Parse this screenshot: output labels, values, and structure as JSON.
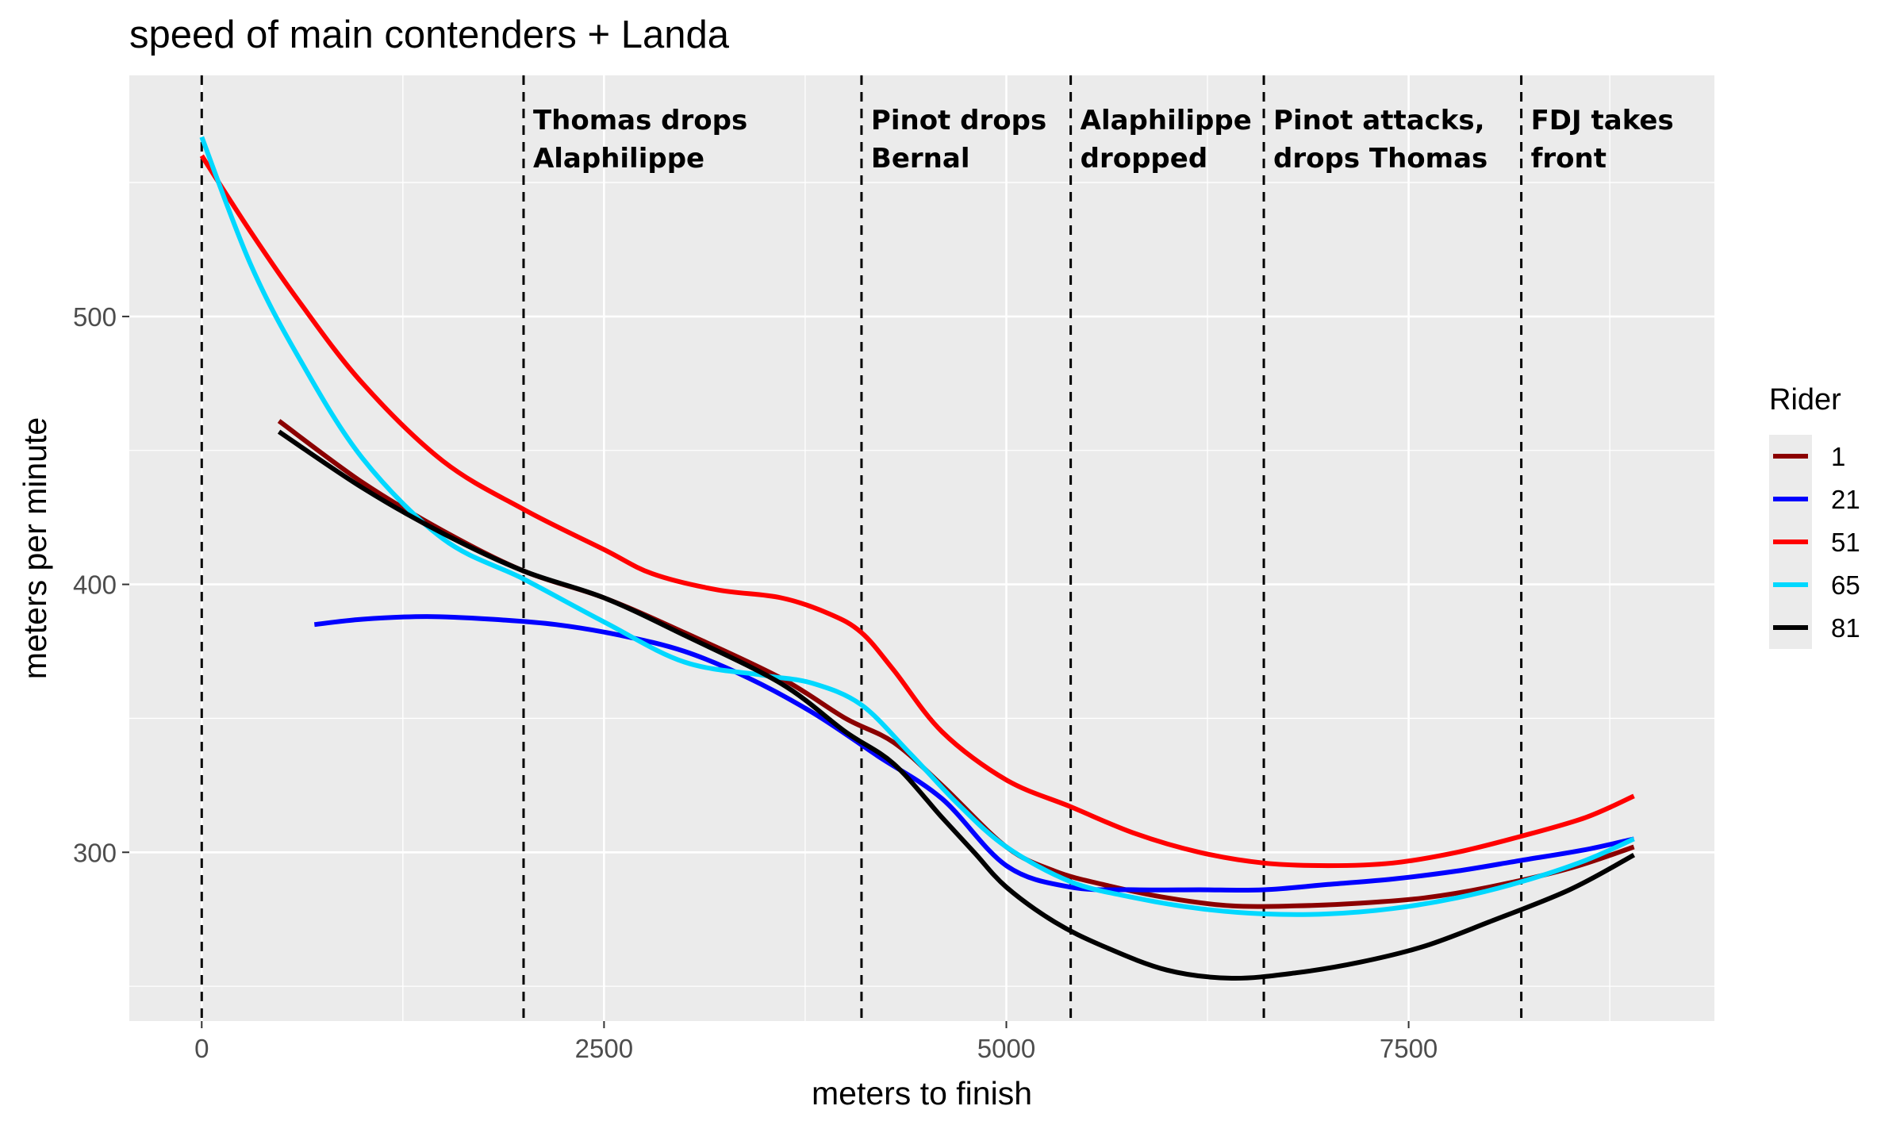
{
  "chart_data": {
    "type": "line",
    "title": "speed of main contenders + Landa",
    "xlabel": "meters to finish",
    "ylabel": "meters per minute",
    "xlim": [
      -450,
      9400
    ],
    "ylim": [
      237,
      590
    ],
    "x_ticks": [
      0,
      2500,
      5000,
      7500
    ],
    "x_tick_labels": [
      "0",
      "2500",
      "5000",
      "7500"
    ],
    "y_ticks": [
      300,
      400,
      500
    ],
    "y_tick_labels": [
      "300",
      "400",
      "500"
    ],
    "y_minor_ticks": [
      250,
      350,
      450,
      550
    ],
    "x_minor_ticks": [
      1250,
      3750,
      6250,
      8750
    ],
    "grid": true,
    "legend": {
      "title": "Rider",
      "position": "right"
    },
    "series": [
      {
        "name": "1",
        "color": "#8b0000",
        "x": [
          480,
          1000,
          1500,
          2000,
          2500,
          3000,
          3600,
          4000,
          4300,
          4600,
          5000,
          5300,
          5600,
          6000,
          6400,
          6800,
          7200,
          7600,
          8000,
          8500,
          8900
        ],
        "y": [
          461,
          438,
          420,
          405,
          395,
          382,
          365,
          350,
          341,
          325,
          302,
          293,
          288,
          283,
          280,
          280,
          281,
          283,
          287,
          294,
          302
        ]
      },
      {
        "name": "21",
        "color": "#0000ff",
        "x": [
          700,
          1000,
          1400,
          1800,
          2200,
          2600,
          3000,
          3400,
          3800,
          4200,
          4600,
          5000,
          5400,
          5800,
          6200,
          6600,
          7000,
          7400,
          7800,
          8200,
          8600,
          8900
        ],
        "y": [
          385,
          387,
          388,
          387,
          385,
          381,
          375,
          365,
          352,
          336,
          320,
          295,
          287,
          286,
          286,
          286,
          288,
          290,
          293,
          297,
          301,
          305
        ]
      },
      {
        "name": "51",
        "color": "#ff0000",
        "x": [
          0,
          300,
          600,
          1000,
          1500,
          2000,
          2500,
          2800,
          3200,
          3600,
          3900,
          4100,
          4300,
          4600,
          5000,
          5400,
          5800,
          6200,
          6600,
          7000,
          7400,
          7800,
          8200,
          8600,
          8900
        ],
        "y": [
          560,
          532,
          506,
          475,
          446,
          428,
          413,
          404,
          398,
          395,
          389,
          382,
          368,
          345,
          327,
          317,
          307,
          300,
          296,
          295,
          296,
          300,
          306,
          313,
          321
        ]
      },
      {
        "name": "65",
        "color": "#00d8ff",
        "x": [
          0,
          300,
          600,
          1000,
          1500,
          2000,
          2500,
          3000,
          3500,
          3800,
          4100,
          4400,
          4700,
          5000,
          5400,
          5800,
          6200,
          6600,
          7000,
          7400,
          7800,
          8200,
          8600,
          8900
        ],
        "y": [
          567,
          520,
          485,
          447,
          417,
          402,
          386,
          371,
          366,
          363,
          355,
          337,
          318,
          302,
          289,
          283,
          279,
          277,
          277,
          279,
          283,
          289,
          297,
          305
        ]
      },
      {
        "name": "81",
        "color": "#000000",
        "x": [
          480,
          1000,
          1500,
          2000,
          2500,
          3000,
          3600,
          4000,
          4300,
          4600,
          4800,
          5000,
          5300,
          5600,
          6000,
          6400,
          6800,
          7200,
          7600,
          8000,
          8500,
          8900
        ],
        "y": [
          457,
          436,
          419,
          405,
          395,
          381,
          363,
          345,
          333,
          313,
          300,
          287,
          274,
          265,
          256,
          253,
          255,
          259,
          265,
          274,
          286,
          299
        ]
      }
    ],
    "vlines": [
      {
        "x": 0,
        "label": []
      },
      {
        "x": 2000,
        "label": [
          "Thomas drops",
          "Alaphilippe"
        ]
      },
      {
        "x": 4100,
        "label": [
          "Pinot drops",
          "Bernal"
        ]
      },
      {
        "x": 5400,
        "label": [
          "Alaphilippe",
          "dropped"
        ]
      },
      {
        "x": 6600,
        "label": [
          "Pinot attacks,",
          "drops Thomas"
        ]
      },
      {
        "x": 8200,
        "label": [
          "FDJ takes",
          "front"
        ]
      }
    ]
  }
}
